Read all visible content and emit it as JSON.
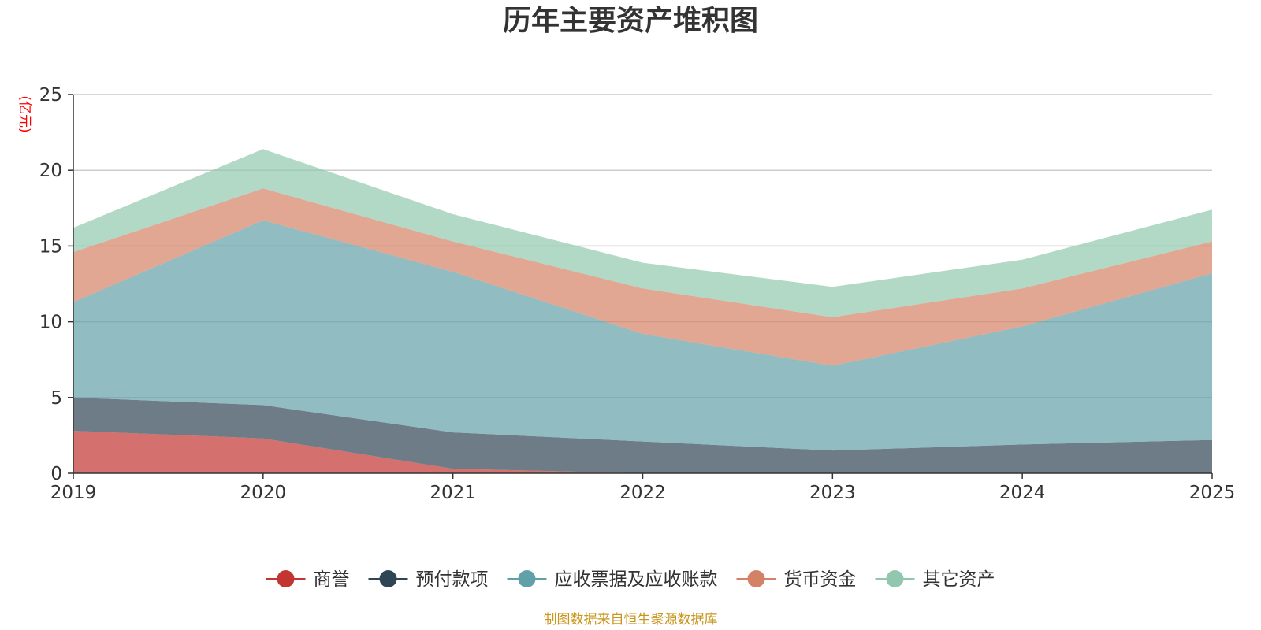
{
  "chart_data": {
    "type": "area",
    "stacked": true,
    "title": "历年主要资产堆积图",
    "unit_label": "(亿元)",
    "x": [
      "2019",
      "2020",
      "2021",
      "2022",
      "2023",
      "2024",
      "2025"
    ],
    "ylim": [
      0,
      25
    ],
    "yticks": [
      0,
      5,
      10,
      15,
      20,
      25
    ],
    "grid": true,
    "legend_position": "bottom",
    "series": [
      {
        "name": "商誉",
        "color": "#c23531",
        "values": [
          2.8,
          2.3,
          0.3,
          0.0,
          0.0,
          0.0,
          0.0
        ]
      },
      {
        "name": "预付款项",
        "color": "#2f4554",
        "values": [
          2.2,
          2.2,
          2.4,
          2.1,
          1.5,
          1.9,
          2.2
        ]
      },
      {
        "name": "应收票据及应收账款",
        "color": "#61a0a8",
        "values": [
          6.3,
          12.2,
          10.6,
          7.1,
          5.6,
          7.8,
          11.0
        ]
      },
      {
        "name": "货币资金",
        "color": "#d48265",
        "values": [
          3.3,
          2.1,
          2.0,
          3.0,
          3.2,
          2.5,
          2.1
        ]
      },
      {
        "name": "其它资产",
        "color": "#91c7ae",
        "values": [
          1.6,
          2.6,
          1.8,
          1.7,
          2.0,
          1.9,
          2.1
        ]
      }
    ]
  },
  "unit_color": "#ff0000",
  "source_note": "制图数据来自恒生聚源数据库",
  "source_color": "#c8961e"
}
